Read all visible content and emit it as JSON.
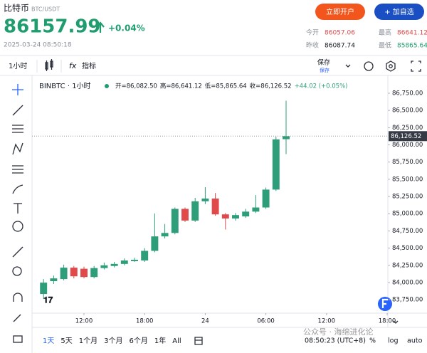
{
  "header": {
    "name": "比特币",
    "pair": "BTC/USDT",
    "price": "86157.99",
    "change": "+0.04%",
    "time": "2025-03-24 08:50:18",
    "open_button": "立即开户",
    "watch_button": "+ 加自选"
  },
  "stats": [
    {
      "label": "今开",
      "value": "86057.06"
    },
    {
      "label": "最高",
      "value": "86641.12"
    },
    {
      "label": "昨收",
      "value": "86087.74"
    },
    {
      "label": "最低",
      "value": "85865.64"
    }
  ],
  "toolbar": {
    "interval": "1小时",
    "fx": "fx",
    "indicators": "指标",
    "save": "保存",
    "save_sub": "保存"
  },
  "chart_data": {
    "type": "candlestick",
    "title": "BINBTC · 1小时",
    "ohlc_legend": [
      "开=86,082.50",
      "高=86,641.12",
      "低=85,865.64",
      "收=86,126.52",
      "+44.02 (+0.05%)"
    ],
    "last_label": "86,126.52",
    "x": [
      8,
      9,
      10,
      11,
      12,
      13,
      14,
      15,
      16,
      17,
      18,
      19,
      20,
      21,
      22,
      23,
      24,
      25,
      26,
      27,
      28,
      29,
      30,
      31,
      32
    ],
    "open": [
      83833,
      84020,
      84050,
      84216,
      84200,
      84080,
      84210,
      84240,
      84270,
      84310,
      84320,
      84460,
      84670,
      84720,
      85070,
      84900,
      85180,
      85220,
      84990,
      84930,
      84960,
      85030,
      85090,
      85350,
      86082.5
    ],
    "high": [
      84050,
      84100,
      84260,
      84240,
      84230,
      84240,
      84290,
      84300,
      84350,
      84360,
      84500,
      85002,
      84850,
      85090,
      85090,
      85230,
      85385,
      85300,
      85010,
      85010,
      85070,
      85270,
      85380,
      86120,
      86641.12
    ],
    "low": [
      83760,
      83980,
      84030,
      84060,
      84060,
      84060,
      84190,
      84220,
      84250,
      84300,
      84300,
      84440,
      84640,
      84700,
      84880,
      84880,
      85140,
      84970,
      84770,
      84900,
      84940,
      85010,
      85070,
      85330,
      85865.64
    ],
    "close": [
      83998,
      84060,
      84216,
      84090,
      84080,
      84210,
      84250,
      84270,
      84320,
      84330,
      84460,
      84670,
      84720,
      85070,
      84900,
      85180,
      85220,
      84990,
      84930,
      84980,
      85030,
      85090,
      85350,
      86080,
      86126.52
    ],
    "up_color": "#2e9e7a",
    "down_color": "#e04a4a",
    "xlim": [
      6.86,
      42.07
    ],
    "xticks": [
      {
        "value": 12,
        "label": "12:00"
      },
      {
        "value": 18,
        "label": "18:00"
      },
      {
        "value": 24,
        "label": "24"
      },
      {
        "value": 30,
        "label": "06:00"
      },
      {
        "value": 36,
        "label": "12:00"
      },
      {
        "value": 42,
        "label": "18:00"
      }
    ],
    "ylim": [
      83555,
      86998
    ],
    "yticks": [
      {
        "value": 86750,
        "label": "86,750.00"
      },
      {
        "value": 86500,
        "label": "86,500.00"
      },
      {
        "value": 86250,
        "label": "86,250.00"
      },
      {
        "value": 86000,
        "label": "86,000.00"
      },
      {
        "value": 85750,
        "label": "85,750.00"
      },
      {
        "value": 85500,
        "label": "85,500.00"
      },
      {
        "value": 85250,
        "label": "85,250.00"
      },
      {
        "value": 85000,
        "label": "85,000.00"
      },
      {
        "value": 84750,
        "label": "84,750.00"
      },
      {
        "value": 84500,
        "label": "84,500.00"
      },
      {
        "value": 84250,
        "label": "84,250.00"
      },
      {
        "value": 84000,
        "label": "84,000.00"
      },
      {
        "value": 83750,
        "label": "83,750.00"
      }
    ],
    "grid": false
  },
  "bottom_bar": {
    "ranges": [
      "1天",
      "5天",
      "1个月",
      "3个月",
      "6个月",
      "1年",
      "All"
    ],
    "clock": "08:50:23 (UTC+8)",
    "percent": "%",
    "log": "log",
    "auto": "auto"
  },
  "watermark": "公众号 · 海绵进化论"
}
